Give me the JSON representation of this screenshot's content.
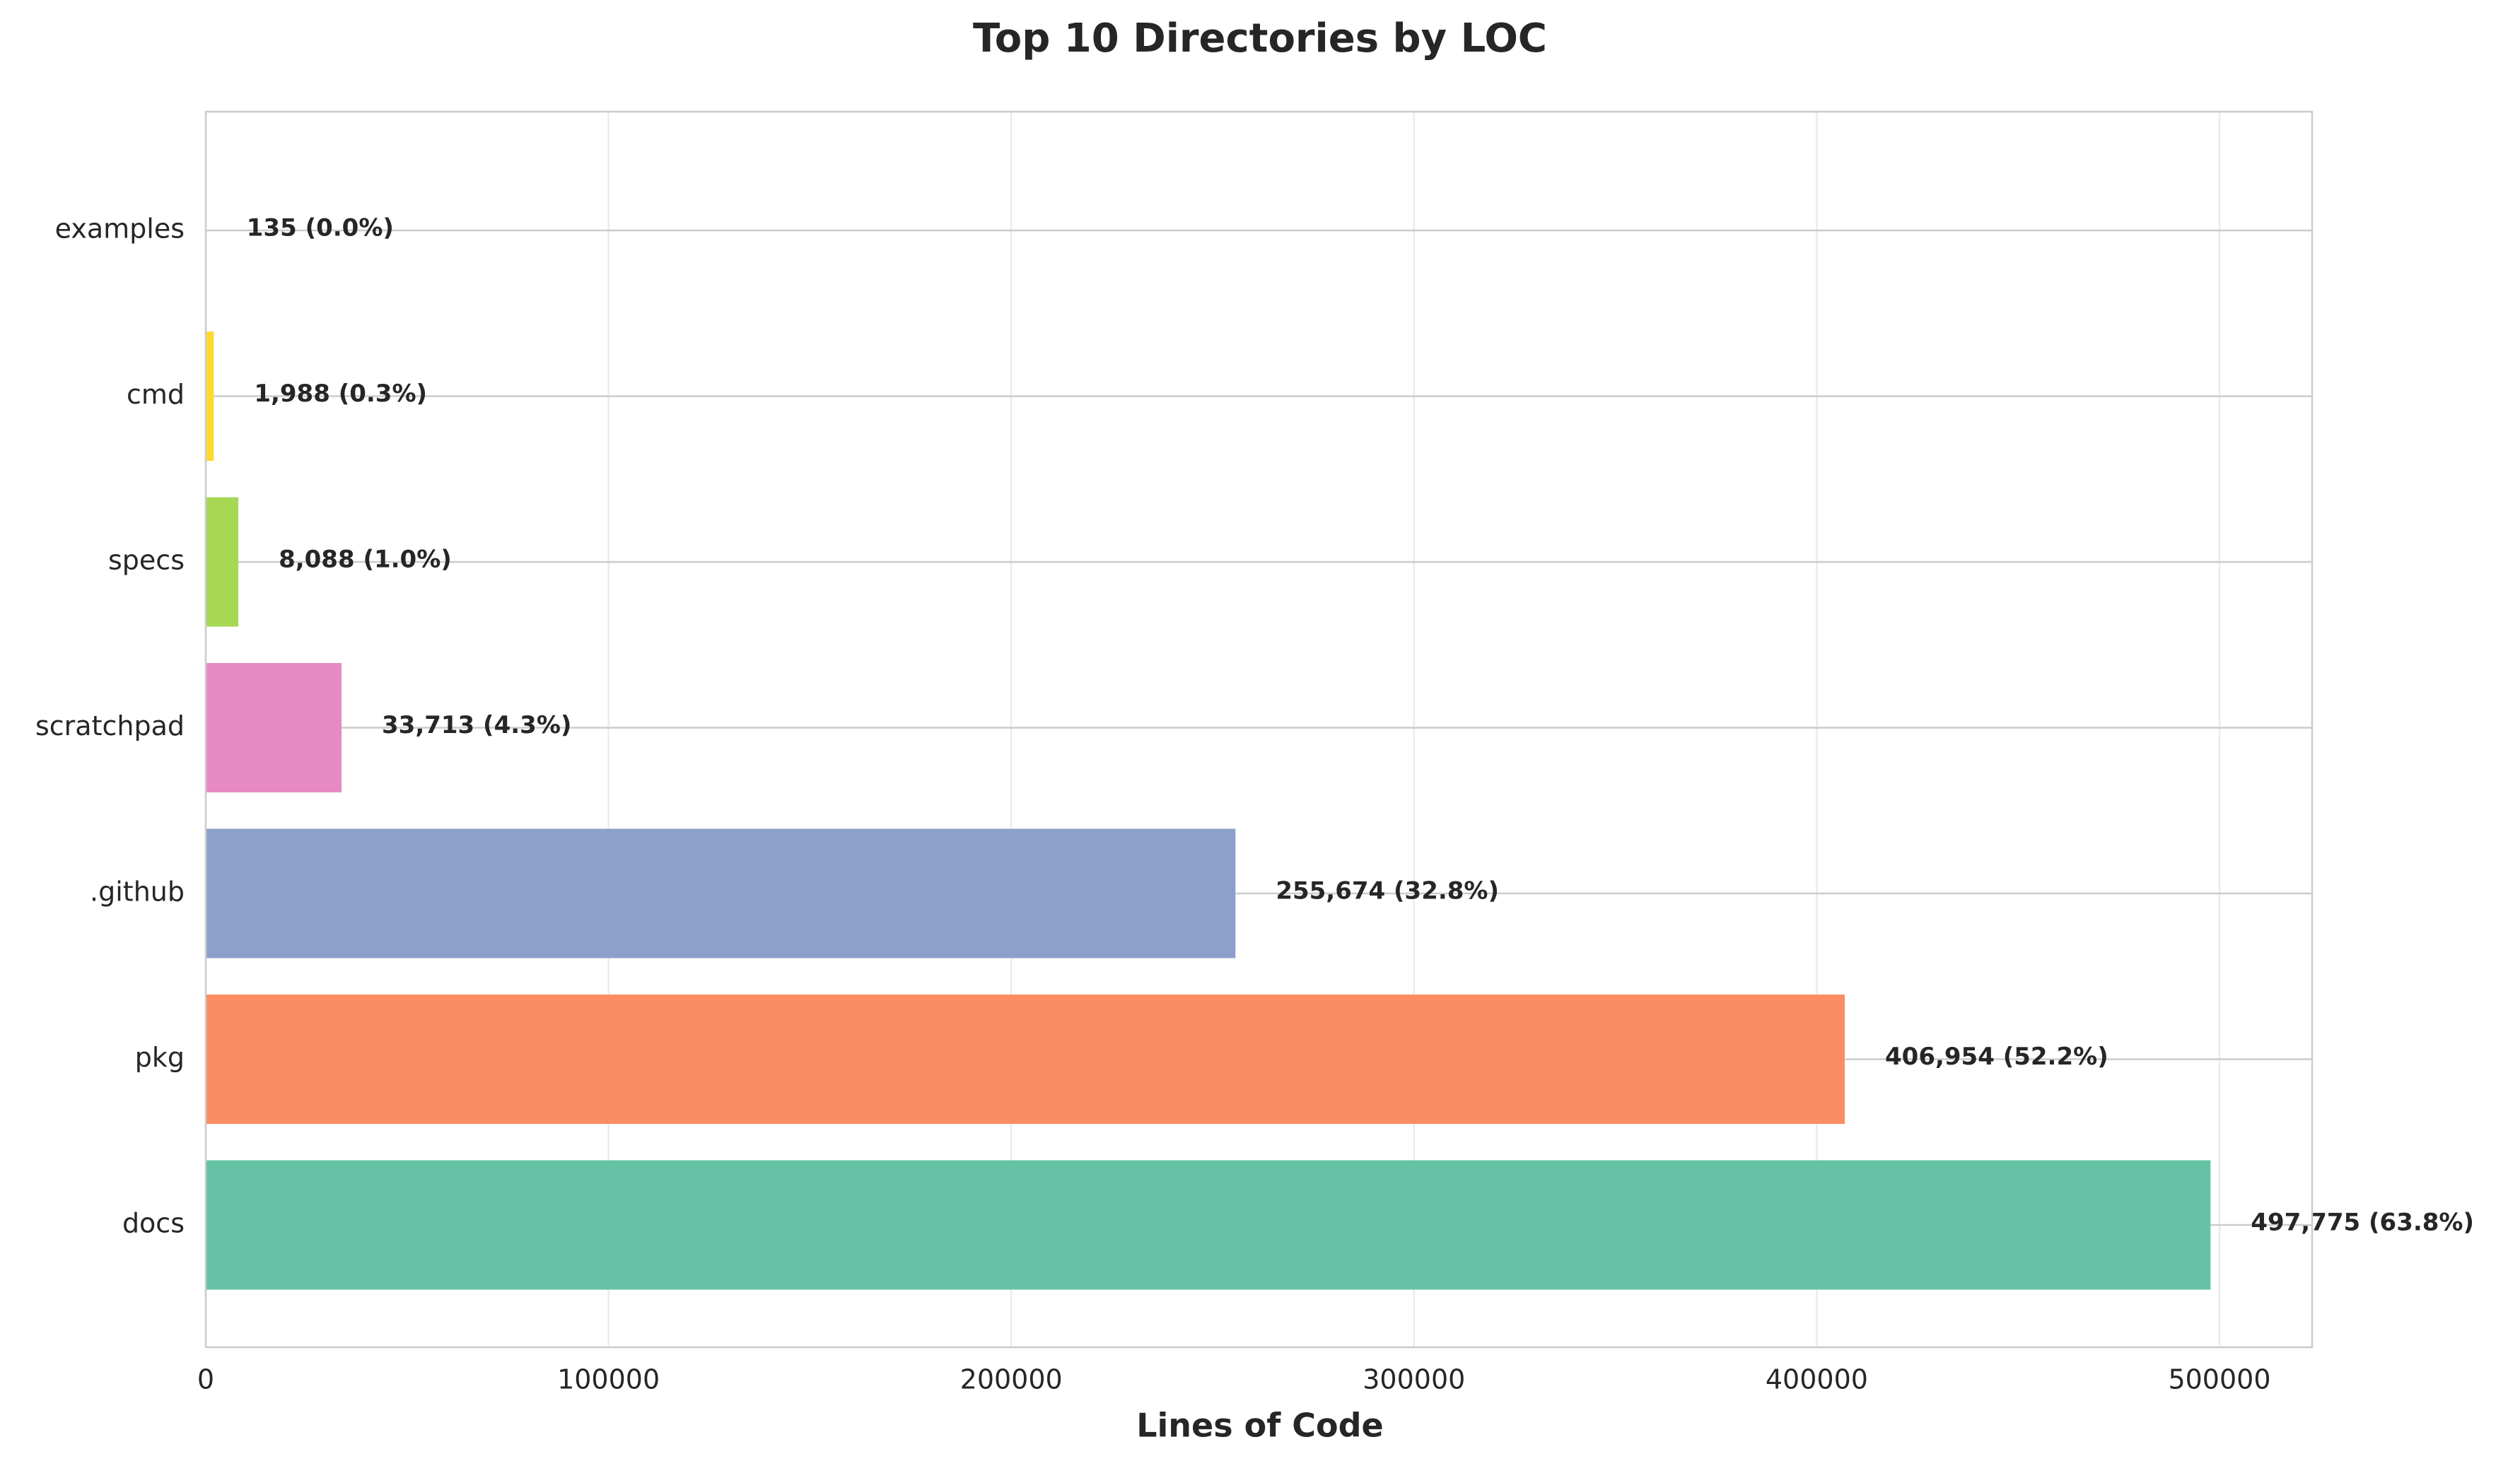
{
  "chart_data": {
    "type": "bar",
    "orientation": "horizontal",
    "title": "Top 10 Directories by LOC",
    "xlabel": "Lines of Code",
    "ylabel": "",
    "xlim": [
      0,
      523000
    ],
    "xticks": [
      0,
      100000,
      200000,
      300000,
      400000,
      500000
    ],
    "xtick_labels": [
      "0",
      "100000",
      "200000",
      "300000",
      "400000",
      "500000"
    ],
    "grid": true,
    "categories": [
      "docs",
      "pkg",
      ".github",
      "scratchpad",
      "specs",
      "cmd",
      "examples"
    ],
    "values": [
      497775,
      406954,
      255674,
      33713,
      8088,
      1988,
      135
    ],
    "labels": [
      "497,775 (63.8%)",
      "406,954 (52.2%)",
      "255,674 (32.8%)",
      "33,713 (4.3%)",
      "8,088 (1.0%)",
      "1,988 (0.3%)",
      "135 (0.0%)"
    ],
    "colors": [
      "#66c2a5",
      "#fc8d62",
      "#8da0cb",
      "#e78ac3",
      "#a6d854",
      "#ffd92f",
      "#e5c494"
    ]
  }
}
